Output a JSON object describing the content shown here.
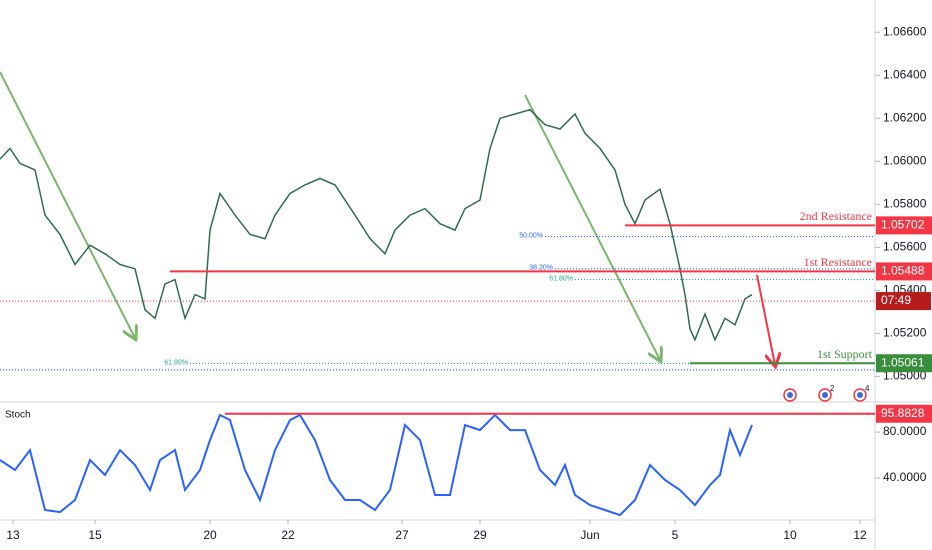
{
  "chart_data": [
    {
      "type": "line",
      "title": null,
      "series": [
        {
          "name": null,
          "color": "#2f6b4f",
          "x": [
            0,
            2,
            4,
            7,
            9,
            12,
            15,
            18,
            21,
            24,
            27,
            29,
            31,
            33,
            35,
            37,
            39,
            41,
            42,
            44,
            47,
            50,
            53,
            55,
            58,
            61,
            64,
            67,
            69,
            71,
            74,
            77,
            79,
            82,
            85,
            88,
            91,
            93,
            96,
            98,
            100,
            103,
            106,
            109,
            112,
            115,
            117,
            120,
            123,
            125,
            127,
            129,
            132,
            134,
            136,
            137,
            138,
            139,
            141,
            143,
            145,
            147,
            149,
            150.4
          ],
          "values": [
            1.0601,
            1.0606,
            1.0599,
            1.0596,
            1.0575,
            1.0566,
            1.0552,
            1.0561,
            1.0557,
            1.0552,
            1.055,
            1.0531,
            1.0527,
            1.0543,
            1.0545,
            1.0527,
            1.0538,
            1.0536,
            1.0568,
            1.0585,
            1.0575,
            1.0566,
            1.0564,
            1.0575,
            1.0585,
            1.0589,
            1.0592,
            1.0589,
            1.0582,
            1.0575,
            1.0564,
            1.0557,
            1.0568,
            1.0575,
            1.0578,
            1.0571,
            1.0568,
            1.0578,
            1.0582,
            1.0606,
            1.062,
            1.0622,
            1.0624,
            1.0617,
            1.0615,
            1.0622,
            1.0613,
            1.0606,
            1.0596,
            1.058,
            1.0571,
            1.0582,
            1.0587,
            1.0571,
            1.055,
            1.0538,
            1.0522,
            1.0517,
            1.0529,
            1.0517,
            1.0527,
            1.0524,
            1.0536,
            1.0538
          ]
        }
      ],
      "xlim": [
        0,
        175
      ],
      "ylim": [
        1.0489,
        1.0675
      ],
      "yticks": [
        {
          "value": 1.05,
          "label": "1.05000"
        },
        {
          "value": 1.052,
          "label": "1.05200"
        },
        {
          "value": 1.054,
          "label": "1.05400"
        },
        {
          "value": 1.056,
          "label": "1.05600"
        },
        {
          "value": 1.058,
          "label": "1.05800"
        },
        {
          "value": 1.06,
          "label": "1.06000"
        },
        {
          "value": 1.062,
          "label": "1.06200"
        },
        {
          "value": 1.064,
          "label": "1.06400"
        },
        {
          "value": 1.066,
          "label": "1.06600"
        }
      ],
      "levels": [
        {
          "name": "2nd Resistance",
          "value": 1.05702,
          "color": "#f23645",
          "from": 125
        },
        {
          "name": "1st Resistance",
          "value": 1.05488,
          "color": "#f23645",
          "from": 34
        },
        {
          "name": "1st Support",
          "value": 1.05061,
          "color": "#388e3c",
          "from": 138
        }
      ],
      "price_line": 1.0535,
      "countdown": "07:49",
      "fibs": [
        {
          "label": "50.00%",
          "value": 1.0565,
          "color": "#2962ff",
          "from": 109
        },
        {
          "label": "38.20%",
          "value": 1.055,
          "color": "#2962ff",
          "from": 111
        },
        {
          "label": "61.80%",
          "value": 1.0545,
          "color": "#26a69a",
          "from": 115
        },
        {
          "label": "61.80%",
          "value": 1.0506,
          "color": "#26a69a",
          "from": 38
        },
        {
          "label": null,
          "value": 1.0503,
          "color": "#2962ff",
          "from": 0
        }
      ],
      "event_badges": [
        "2",
        "4"
      ]
    },
    {
      "type": "line",
      "title": "Stoch",
      "series": [
        {
          "name": null,
          "color": "#2962ff",
          "x": [
            0,
            3,
            6,
            9,
            12,
            15,
            18,
            21,
            24,
            27,
            30,
            32,
            35,
            37,
            40,
            42,
            44,
            46,
            49,
            52,
            55,
            58,
            60,
            63,
            66,
            69,
            72,
            75,
            78,
            81,
            84,
            87,
            90,
            93,
            96,
            99,
            102,
            105,
            108,
            111,
            113,
            115,
            118,
            121,
            124,
            127,
            130,
            133,
            136,
            139,
            142,
            144,
            146,
            148,
            150.4
          ],
          "values": [
            55.7,
            47,
            64.3,
            12.2,
            10.4,
            20.9,
            55.7,
            42.6,
            64.3,
            51.3,
            29.6,
            55.7,
            64.3,
            29.6,
            47,
            73,
            94.8,
            90.4,
            47,
            20.9,
            64.3,
            90.4,
            94.8,
            73,
            38.3,
            20.9,
            20.9,
            12.2,
            29.6,
            86.1,
            73,
            25.2,
            25.2,
            86.1,
            81.7,
            94.8,
            81.7,
            81.7,
            47,
            33.9,
            51.3,
            25.2,
            16.5,
            12.2,
            7.8,
            20.9,
            51.3,
            38.3,
            29.6,
            16.5,
            33.9,
            42.6,
            81.7,
            60,
            86.1
          ]
        }
      ],
      "xlim": [
        0,
        175
      ],
      "ylim": [
        3.5,
        103.5
      ],
      "yticks": [
        {
          "value": 40,
          "label": "40.0000"
        },
        {
          "value": 80,
          "label": "80.0000"
        }
      ],
      "levels": [
        {
          "name": null,
          "value": 95.8828,
          "color": "#f23645",
          "from": 45
        }
      ],
      "xticks": [
        {
          "value": 2.6,
          "label": "13"
        },
        {
          "value": 19,
          "label": "15"
        },
        {
          "value": 42,
          "label": "20"
        },
        {
          "value": 57.6,
          "label": "22"
        },
        {
          "value": 80.4,
          "label": "27"
        },
        {
          "value": 96,
          "label": "29"
        },
        {
          "value": 118,
          "label": "Jun"
        },
        {
          "value": 135,
          "label": "5"
        },
        {
          "value": 158,
          "label": "10"
        },
        {
          "value": 172,
          "label": "12"
        }
      ]
    }
  ]
}
